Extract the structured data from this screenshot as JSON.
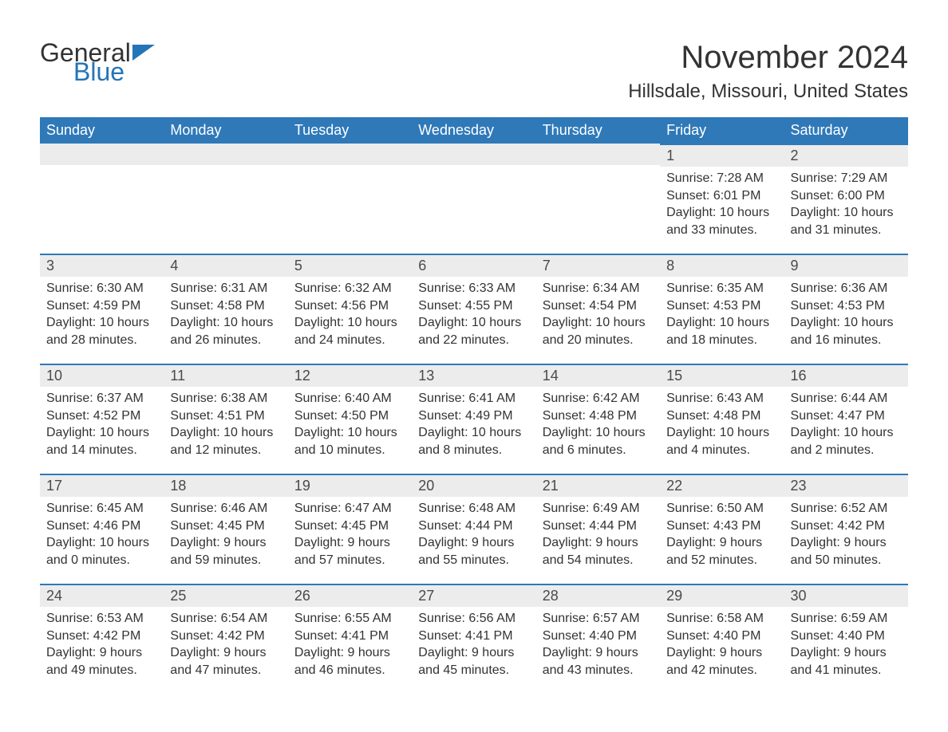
{
  "logo": {
    "word1": "General",
    "word2": "Blue"
  },
  "title": "November 2024",
  "location": "Hillsdale, Missouri, United States",
  "colors": {
    "header_bg": "#2f79b9",
    "header_text": "#ffffff",
    "daynum_bg": "#ececec",
    "row_border": "#2f79b9",
    "text": "#333333",
    "logo_blue": "#2475b8",
    "page_bg": "#ffffff"
  },
  "weekdays": [
    "Sunday",
    "Monday",
    "Tuesday",
    "Wednesday",
    "Thursday",
    "Friday",
    "Saturday"
  ],
  "labels": {
    "sunrise": "Sunrise: ",
    "sunset": "Sunset: ",
    "daylight": "Daylight: "
  },
  "weeks": [
    [
      null,
      null,
      null,
      null,
      null,
      {
        "n": "1",
        "sunrise": "7:28 AM",
        "sunset": "6:01 PM",
        "daylight": "10 hours and 33 minutes."
      },
      {
        "n": "2",
        "sunrise": "7:29 AM",
        "sunset": "6:00 PM",
        "daylight": "10 hours and 31 minutes."
      }
    ],
    [
      {
        "n": "3",
        "sunrise": "6:30 AM",
        "sunset": "4:59 PM",
        "daylight": "10 hours and 28 minutes."
      },
      {
        "n": "4",
        "sunrise": "6:31 AM",
        "sunset": "4:58 PM",
        "daylight": "10 hours and 26 minutes."
      },
      {
        "n": "5",
        "sunrise": "6:32 AM",
        "sunset": "4:56 PM",
        "daylight": "10 hours and 24 minutes."
      },
      {
        "n": "6",
        "sunrise": "6:33 AM",
        "sunset": "4:55 PM",
        "daylight": "10 hours and 22 minutes."
      },
      {
        "n": "7",
        "sunrise": "6:34 AM",
        "sunset": "4:54 PM",
        "daylight": "10 hours and 20 minutes."
      },
      {
        "n": "8",
        "sunrise": "6:35 AM",
        "sunset": "4:53 PM",
        "daylight": "10 hours and 18 minutes."
      },
      {
        "n": "9",
        "sunrise": "6:36 AM",
        "sunset": "4:53 PM",
        "daylight": "10 hours and 16 minutes."
      }
    ],
    [
      {
        "n": "10",
        "sunrise": "6:37 AM",
        "sunset": "4:52 PM",
        "daylight": "10 hours and 14 minutes."
      },
      {
        "n": "11",
        "sunrise": "6:38 AM",
        "sunset": "4:51 PM",
        "daylight": "10 hours and 12 minutes."
      },
      {
        "n": "12",
        "sunrise": "6:40 AM",
        "sunset": "4:50 PM",
        "daylight": "10 hours and 10 minutes."
      },
      {
        "n": "13",
        "sunrise": "6:41 AM",
        "sunset": "4:49 PM",
        "daylight": "10 hours and 8 minutes."
      },
      {
        "n": "14",
        "sunrise": "6:42 AM",
        "sunset": "4:48 PM",
        "daylight": "10 hours and 6 minutes."
      },
      {
        "n": "15",
        "sunrise": "6:43 AM",
        "sunset": "4:48 PM",
        "daylight": "10 hours and 4 minutes."
      },
      {
        "n": "16",
        "sunrise": "6:44 AM",
        "sunset": "4:47 PM",
        "daylight": "10 hours and 2 minutes."
      }
    ],
    [
      {
        "n": "17",
        "sunrise": "6:45 AM",
        "sunset": "4:46 PM",
        "daylight": "10 hours and 0 minutes."
      },
      {
        "n": "18",
        "sunrise": "6:46 AM",
        "sunset": "4:45 PM",
        "daylight": "9 hours and 59 minutes."
      },
      {
        "n": "19",
        "sunrise": "6:47 AM",
        "sunset": "4:45 PM",
        "daylight": "9 hours and 57 minutes."
      },
      {
        "n": "20",
        "sunrise": "6:48 AM",
        "sunset": "4:44 PM",
        "daylight": "9 hours and 55 minutes."
      },
      {
        "n": "21",
        "sunrise": "6:49 AM",
        "sunset": "4:44 PM",
        "daylight": "9 hours and 54 minutes."
      },
      {
        "n": "22",
        "sunrise": "6:50 AM",
        "sunset": "4:43 PM",
        "daylight": "9 hours and 52 minutes."
      },
      {
        "n": "23",
        "sunrise": "6:52 AM",
        "sunset": "4:42 PM",
        "daylight": "9 hours and 50 minutes."
      }
    ],
    [
      {
        "n": "24",
        "sunrise": "6:53 AM",
        "sunset": "4:42 PM",
        "daylight": "9 hours and 49 minutes."
      },
      {
        "n": "25",
        "sunrise": "6:54 AM",
        "sunset": "4:42 PM",
        "daylight": "9 hours and 47 minutes."
      },
      {
        "n": "26",
        "sunrise": "6:55 AM",
        "sunset": "4:41 PM",
        "daylight": "9 hours and 46 minutes."
      },
      {
        "n": "27",
        "sunrise": "6:56 AM",
        "sunset": "4:41 PM",
        "daylight": "9 hours and 45 minutes."
      },
      {
        "n": "28",
        "sunrise": "6:57 AM",
        "sunset": "4:40 PM",
        "daylight": "9 hours and 43 minutes."
      },
      {
        "n": "29",
        "sunrise": "6:58 AM",
        "sunset": "4:40 PM",
        "daylight": "9 hours and 42 minutes."
      },
      {
        "n": "30",
        "sunrise": "6:59 AM",
        "sunset": "4:40 PM",
        "daylight": "9 hours and 41 minutes."
      }
    ]
  ]
}
